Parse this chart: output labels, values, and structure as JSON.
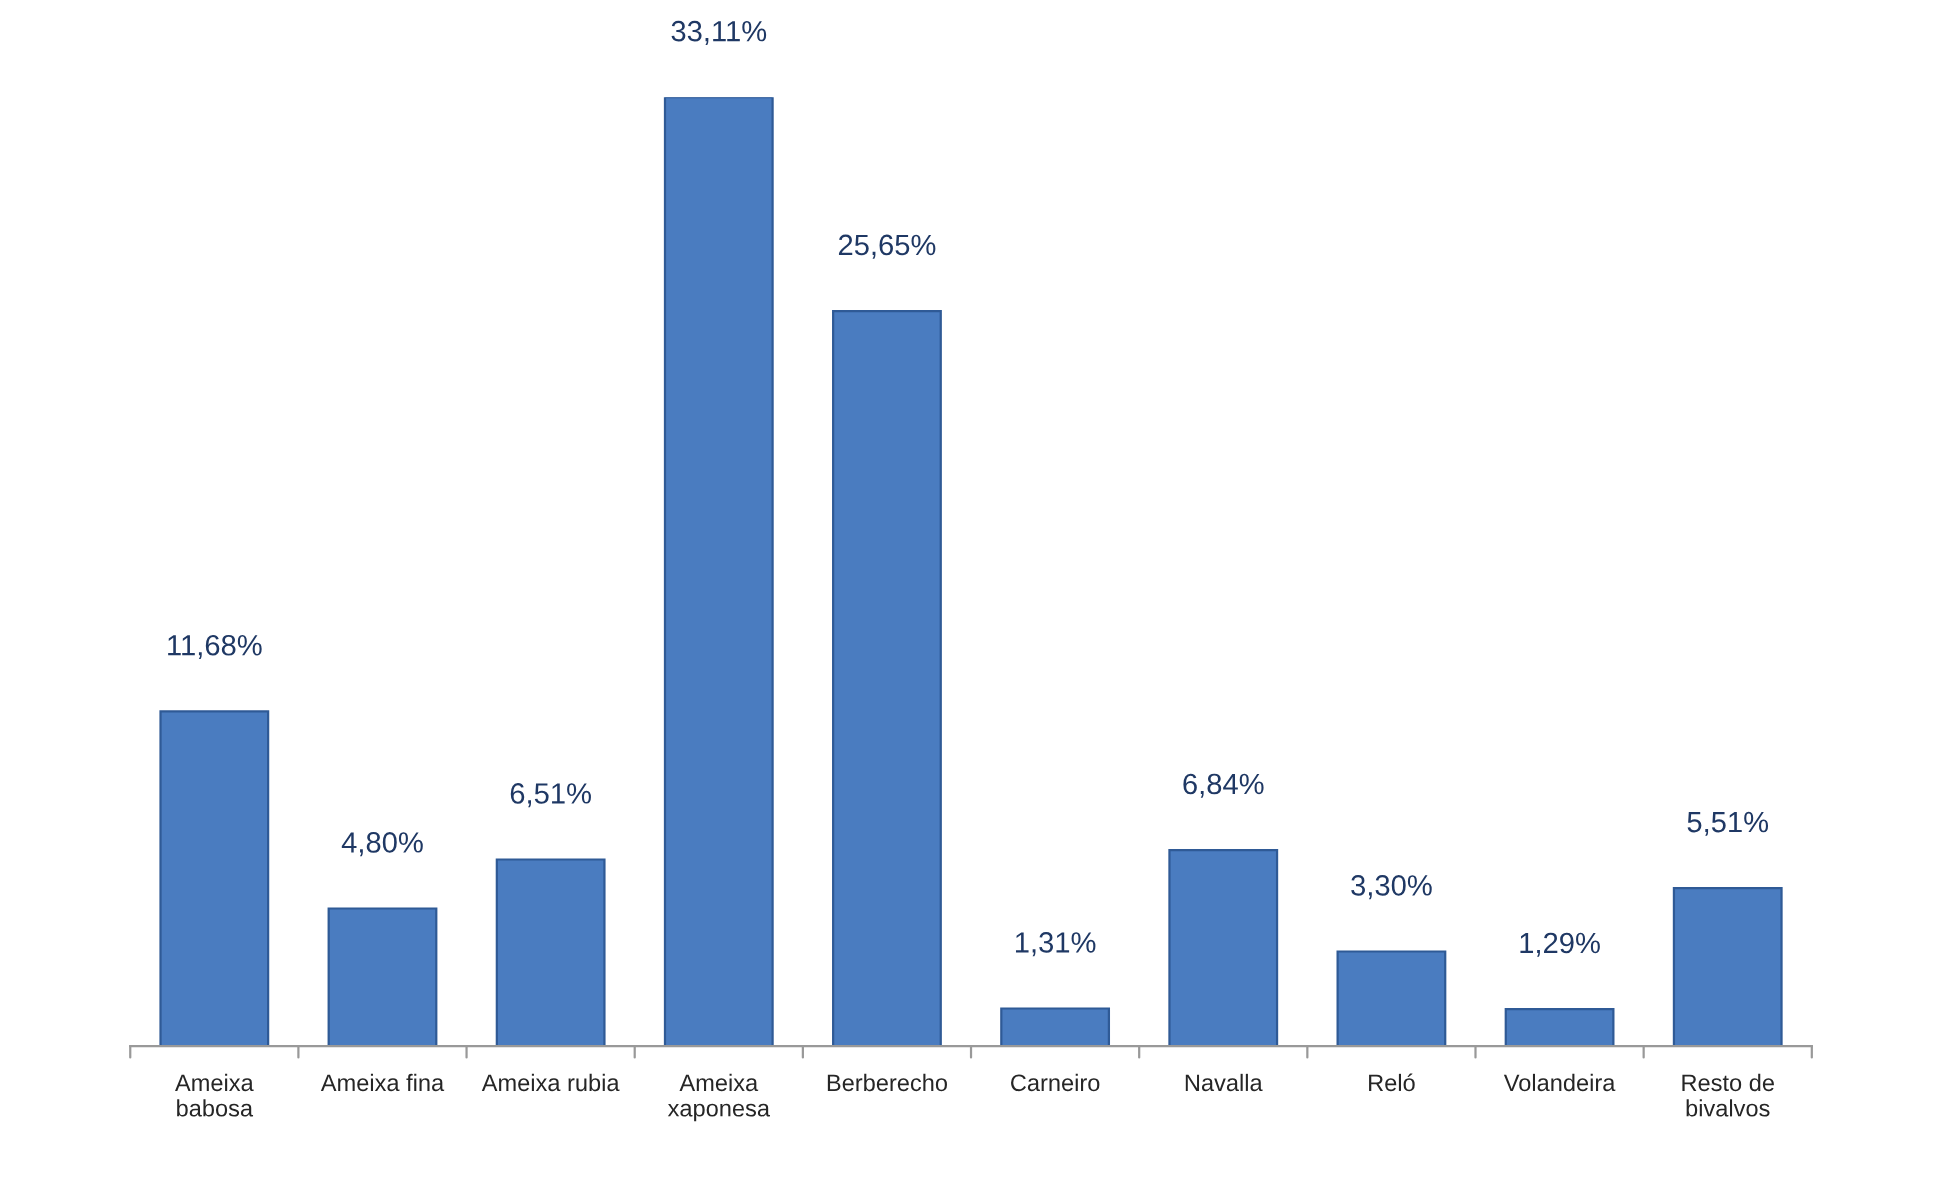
{
  "chart_data": {
    "type": "bar",
    "categories": [
      "Ameixa\nbabosa",
      "Ameixa fina",
      "Ameixa rubia",
      "Ameixa\nxaponesa",
      "Berberecho",
      "Carneiro",
      "Navalla",
      "Reló",
      "Volandeira",
      "Resto de\nbivalvos"
    ],
    "values": [
      11.68,
      4.8,
      6.51,
      33.11,
      25.65,
      1.31,
      6.84,
      3.3,
      1.29,
      5.51
    ],
    "value_labels": [
      "11,68%",
      "4,80%",
      "6,51%",
      "33,11%",
      "25,65%",
      "1,31%",
      "6,84%",
      "3,30%",
      "1,29%",
      "5,51%"
    ],
    "color": "#4a7cc0",
    "grid": false,
    "legend": false,
    "tick_labels": "x"
  }
}
